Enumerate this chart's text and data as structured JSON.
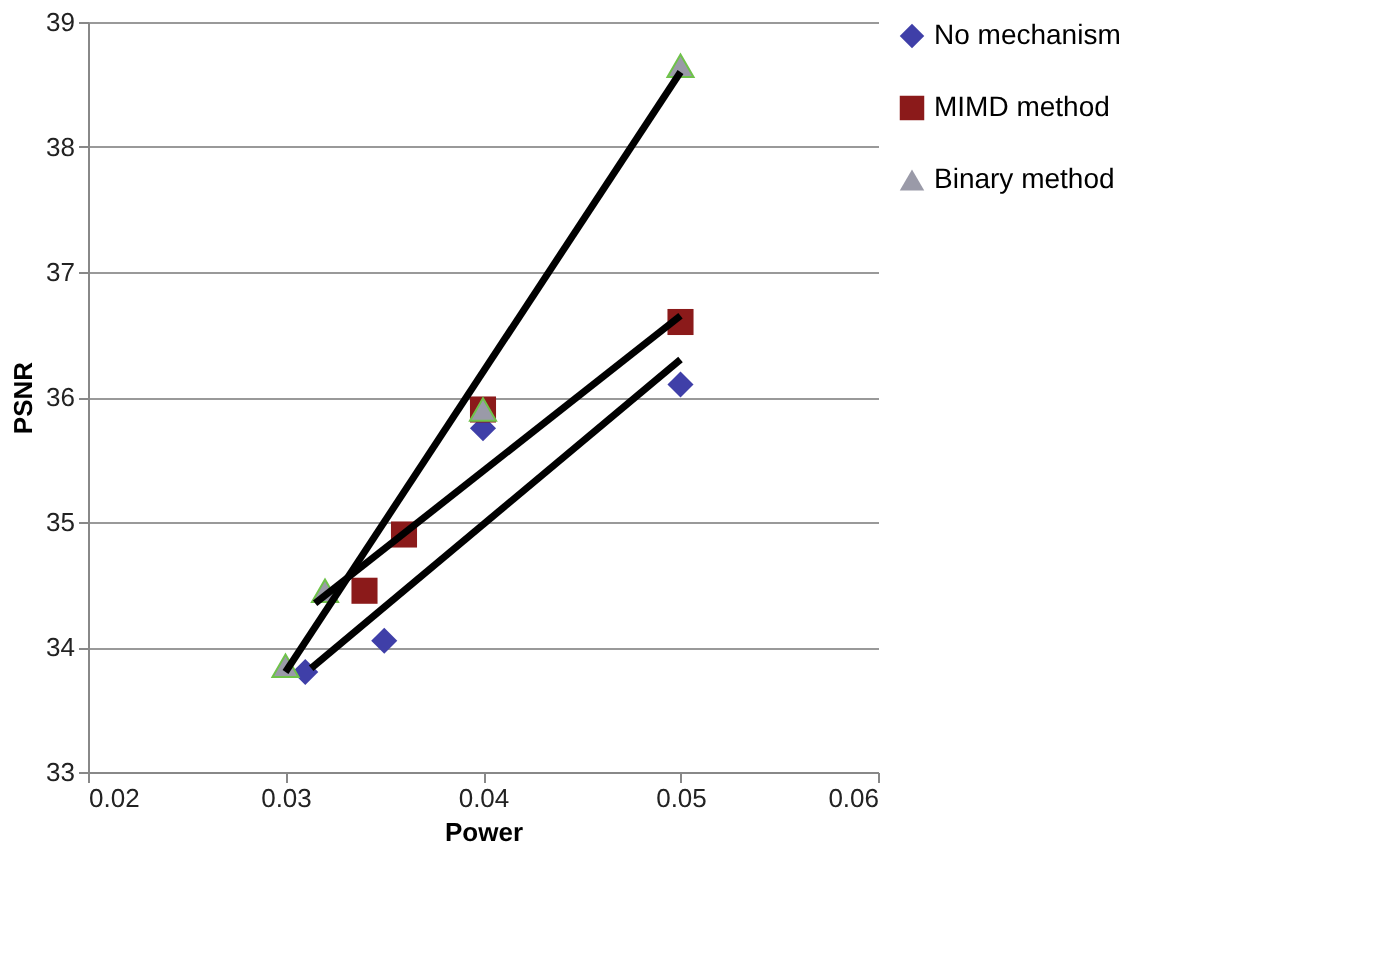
{
  "chart_data": {
    "type": "scatter",
    "xlabel": "Power",
    "ylabel": "PSNR",
    "xlim": [
      0.02,
      0.06
    ],
    "xticks": [
      0.02,
      0.03,
      0.04,
      0.05,
      0.06
    ],
    "ylim": [
      33,
      39
    ],
    "yticks": [
      33,
      34,
      35,
      36,
      37,
      38,
      39
    ],
    "grid": "y",
    "legend": "right",
    "series": [
      {
        "name": "No mechanism",
        "color": "#3f3fa8",
        "marker": "diamond",
        "x": [
          0.031,
          0.035,
          0.04,
          0.05
        ],
        "values": [
          33.8,
          34.05,
          35.75,
          36.1
        ]
      },
      {
        "name": "MIMD method",
        "color": "#8b1a1a",
        "marker": "square",
        "x": [
          0.034,
          0.036,
          0.04,
          0.05
        ],
        "values": [
          34.45,
          34.9,
          35.9,
          36.6
        ]
      },
      {
        "name": "Binary method",
        "color": "#9a9aa8",
        "marker": "triangle",
        "x": [
          0.03,
          0.032,
          0.04,
          0.05
        ],
        "values": [
          33.85,
          34.45,
          35.9,
          38.65
        ]
      },
      {
        "type": "line",
        "color": "#000000",
        "marker": "none",
        "x": [
          0.0313,
          0.05
        ],
        "values": [
          33.83,
          36.3
        ]
      },
      {
        "type": "line",
        "color": "#000000",
        "marker": "none",
        "x": [
          0.0315,
          0.05
        ],
        "values": [
          34.35,
          36.65
        ]
      },
      {
        "type": "line",
        "color": "#000000",
        "marker": "none",
        "x": [
          0.03,
          0.05
        ],
        "values": [
          33.8,
          38.6
        ]
      }
    ]
  }
}
